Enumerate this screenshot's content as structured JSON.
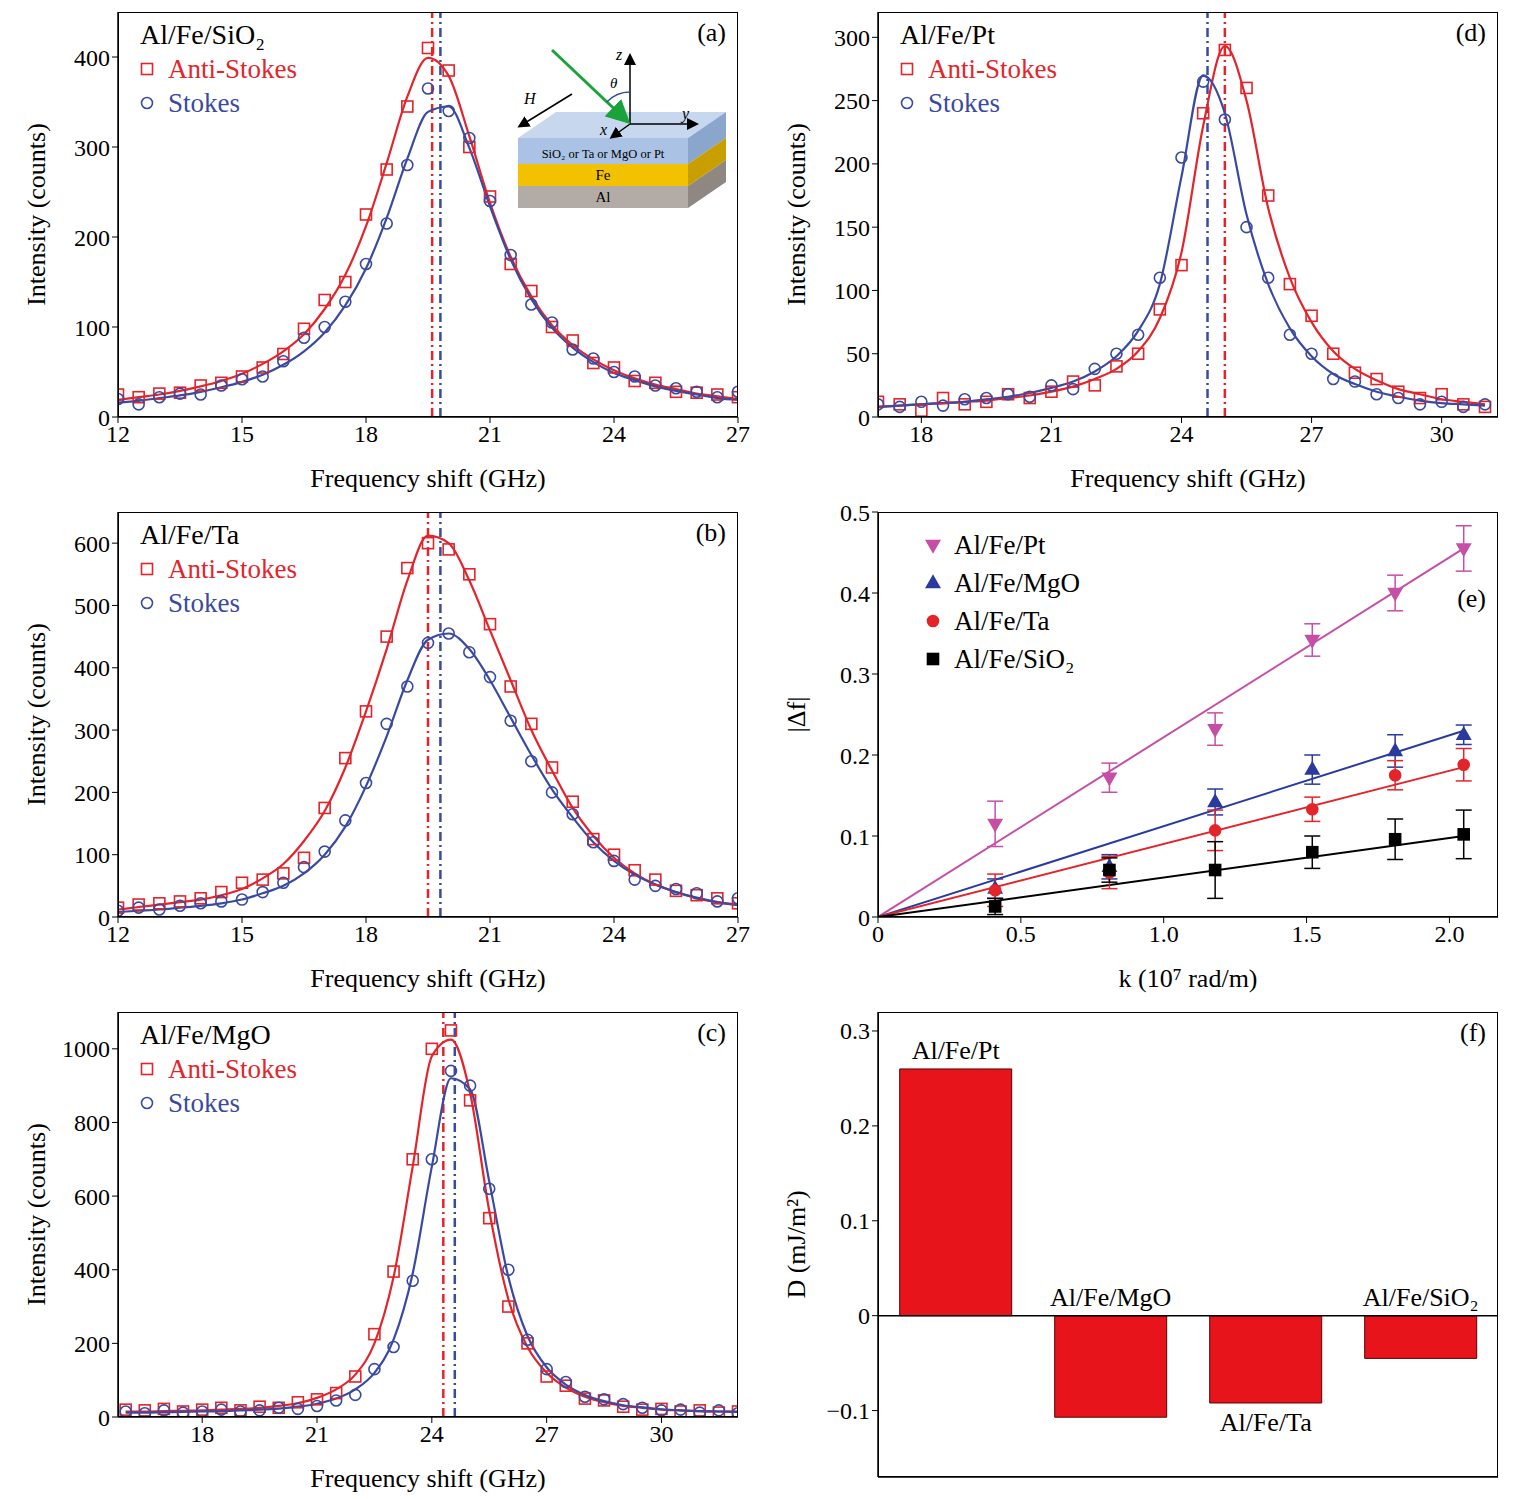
{
  "chart_data": [
    {
      "type": "line",
      "panel": "(a)",
      "title": "Al/Fe/SiO₂",
      "x_label": "Frequency shift (GHz)",
      "y_label": "Intensity (counts)",
      "xlim": [
        12,
        27
      ],
      "xticks": [
        12,
        15,
        18,
        21,
        24,
        27
      ],
      "ylim": [
        0,
        450
      ],
      "yticks": [
        0,
        100,
        200,
        300,
        400
      ],
      "legend": "upper left",
      "x": [
        12,
        12.5,
        13,
        13.5,
        14,
        14.5,
        15,
        15.5,
        16,
        16.5,
        17,
        17.5,
        18,
        18.5,
        19,
        19.5,
        20,
        20.5,
        21,
        21.5,
        22,
        22.5,
        23,
        23.5,
        24,
        24.5,
        25,
        25.5,
        26,
        26.5,
        27
      ],
      "series": [
        {
          "name": "Anti-Stokes",
          "color": "#e3242b",
          "marker": "open_square",
          "peak": 19.6,
          "values": [
            25,
            22,
            26,
            27,
            35,
            38,
            45,
            55,
            70,
            98,
            130,
            150,
            225,
            275,
            345,
            410,
            385,
            300,
            245,
            170,
            140,
            100,
            85,
            60,
            55,
            40,
            38,
            28,
            27,
            25,
            22
          ],
          "fit": [
            19,
            22,
            25,
            29,
            34,
            40,
            48,
            59,
            73,
            92,
            120,
            158,
            212,
            282,
            356,
            399,
            379,
            312,
            238,
            178,
            134,
            102,
            80,
            64,
            52,
            43,
            36,
            31,
            26,
            23,
            20
          ]
        },
        {
          "name": "Stokes",
          "color": "#3a4aa0",
          "marker": "open_circle",
          "peak": 19.8,
          "values": [
            20,
            14,
            22,
            26,
            25,
            35,
            42,
            45,
            62,
            88,
            100,
            128,
            170,
            215,
            280,
            365,
            340,
            310,
            240,
            180,
            125,
            105,
            75,
            65,
            50,
            45,
            35,
            32,
            28,
            22,
            28
          ],
          "fit": [
            16,
            18,
            21,
            24,
            28,
            33,
            39,
            47,
            58,
            73,
            94,
            124,
            165,
            221,
            287,
            339,
            345,
            299,
            234,
            175,
            131,
            99,
            77,
            61,
            49,
            41,
            34,
            29,
            25,
            21,
            19
          ]
        }
      ],
      "inset": {
        "layers": [
          "SiO₂ or Ta or MgO or Pt",
          "Fe",
          "Al"
        ],
        "axes": [
          "x",
          "y",
          "z"
        ],
        "angle": "θ",
        "field": "H"
      }
    },
    {
      "type": "line",
      "panel": "(b)",
      "title": "Al/Fe/Ta",
      "x_label": "Frequency shift (GHz)",
      "y_label": "Intensity (counts)",
      "xlim": [
        12,
        27
      ],
      "xticks": [
        12,
        15,
        18,
        21,
        24,
        27
      ],
      "ylim": [
        0,
        650
      ],
      "yticks": [
        0,
        100,
        200,
        300,
        400,
        500,
        600
      ],
      "legend": "upper left",
      "x": [
        12,
        12.5,
        13,
        13.5,
        14,
        14.5,
        15,
        15.5,
        16,
        16.5,
        17,
        17.5,
        18,
        18.5,
        19,
        19.5,
        20,
        20.5,
        21,
        21.5,
        22,
        22.5,
        23,
        23.5,
        24,
        24.5,
        25,
        25.5,
        26,
        26.5,
        27
      ],
      "series": [
        {
          "name": "Anti-Stokes",
          "color": "#e3242b",
          "marker": "open_square",
          "peak": 19.5,
          "values": [
            15,
            20,
            22,
            25,
            30,
            40,
            55,
            60,
            70,
            95,
            175,
            255,
            330,
            450,
            560,
            600,
            590,
            550,
            470,
            370,
            310,
            240,
            185,
            125,
            100,
            75,
            60,
            42,
            35,
            30,
            22
          ],
          "fit": [
            12,
            16,
            20,
            24,
            28,
            35,
            45,
            62,
            85,
            122,
            170,
            240,
            330,
            430,
            540,
            612,
            600,
            540,
            460,
            380,
            300,
            235,
            175,
            130,
            95,
            70,
            52,
            40,
            30,
            24,
            20
          ]
        },
        {
          "name": "Stokes",
          "color": "#3a4aa0",
          "marker": "open_circle",
          "peak": 19.8,
          "values": [
            10,
            15,
            12,
            18,
            22,
            25,
            28,
            40,
            55,
            80,
            105,
            155,
            215,
            310,
            370,
            440,
            455,
            425,
            385,
            315,
            250,
            200,
            165,
            120,
            90,
            60,
            50,
            45,
            38,
            25,
            30
          ],
          "fit": [
            8,
            10,
            12,
            15,
            18,
            22,
            28,
            38,
            50,
            70,
            100,
            145,
            210,
            290,
            380,
            445,
            455,
            430,
            380,
            320,
            260,
            205,
            160,
            120,
            90,
            68,
            52,
            40,
            31,
            24,
            19
          ]
        }
      ]
    },
    {
      "type": "line",
      "panel": "(c)",
      "title": "Al/Fe/MgO",
      "x_label": "Frequency shift (GHz)",
      "y_label": "Intensity (counts)",
      "xlim": [
        15.8,
        32
      ],
      "xticks": [
        18,
        21,
        24,
        27,
        30
      ],
      "ylim": [
        0,
        1100
      ],
      "yticks": [
        0,
        200,
        400,
        600,
        800,
        1000
      ],
      "legend": "upper left",
      "x": [
        16,
        16.5,
        17,
        17.5,
        18,
        18.5,
        19,
        19.5,
        20,
        20.5,
        21,
        21.5,
        22,
        22.5,
        23,
        23.5,
        24,
        24.5,
        25,
        25.5,
        26,
        26.5,
        27,
        27.5,
        28,
        28.5,
        29,
        29.5,
        30,
        30.5,
        31,
        31.5,
        32
      ],
      "series": [
        {
          "name": "Anti-Stokes",
          "color": "#e3242b",
          "marker": "open_square",
          "peak": 24.3,
          "values": [
            20,
            18,
            22,
            15,
            20,
            25,
            18,
            28,
            25,
            40,
            48,
            65,
            110,
            225,
            395,
            700,
            1000,
            1050,
            860,
            540,
            300,
            200,
            110,
            85,
            50,
            45,
            28,
            20,
            22,
            15,
            18,
            12,
            15
          ],
          "fit": [
            15,
            15,
            16,
            17,
            18,
            20,
            22,
            25,
            30,
            38,
            52,
            75,
            115,
            200,
            380,
            680,
            980,
            1025,
            880,
            560,
            320,
            190,
            120,
            80,
            55,
            40,
            30,
            25,
            20,
            18,
            16,
            15,
            14
          ]
        },
        {
          "name": "Stokes",
          "color": "#3a4aa0",
          "marker": "open_circle",
          "peak": 24.6,
          "values": [
            15,
            10,
            18,
            12,
            15,
            20,
            15,
            18,
            25,
            22,
            30,
            45,
            60,
            130,
            190,
            370,
            700,
            940,
            900,
            620,
            400,
            210,
            130,
            95,
            55,
            48,
            35,
            25,
            18,
            20,
            12,
            18,
            10
          ],
          "fit": [
            12,
            12,
            13,
            14,
            15,
            16,
            18,
            20,
            23,
            28,
            36,
            50,
            75,
            120,
            210,
            390,
            680,
            920,
            890,
            640,
            380,
            220,
            135,
            88,
            60,
            43,
            32,
            26,
            21,
            18,
            16,
            15,
            14
          ]
        }
      ]
    },
    {
      "type": "line",
      "panel": "(d)",
      "title": "Al/Fe/Pt",
      "x_label": "Frequency shift (GHz)",
      "y_label": "Intensity (counts)",
      "xlim": [
        17,
        31.3
      ],
      "xticks": [
        18,
        21,
        24,
        27,
        30
      ],
      "ylim": [
        0,
        320
      ],
      "yticks": [
        0,
        50,
        100,
        150,
        200,
        250,
        300
      ],
      "legend": "upper left",
      "x": [
        17,
        17.5,
        18,
        18.5,
        19,
        19.5,
        20,
        20.5,
        21,
        21.5,
        22,
        22.5,
        23,
        23.5,
        24,
        24.5,
        25,
        25.5,
        26,
        26.5,
        27,
        27.5,
        28,
        28.5,
        29,
        29.5,
        30,
        30.5,
        31
      ],
      "series": [
        {
          "name": "Anti-Stokes",
          "color": "#e3242b",
          "marker": "open_square",
          "peak": 25.0,
          "values": [
            12,
            10,
            5,
            15,
            10,
            12,
            18,
            15,
            20,
            28,
            25,
            40,
            50,
            85,
            120,
            240,
            290,
            260,
            175,
            105,
            80,
            50,
            35,
            30,
            20,
            15,
            18,
            10,
            8
          ],
          "fit": [
            8,
            9,
            10,
            11,
            12,
            13,
            15,
            17,
            20,
            24,
            30,
            38,
            52,
            78,
            130,
            230,
            293,
            250,
            165,
            110,
            75,
            52,
            38,
            29,
            22,
            18,
            14,
            12,
            10
          ]
        },
        {
          "name": "Stokes",
          "color": "#3a4aa0",
          "marker": "open_circle",
          "peak": 24.6,
          "values": [
            10,
            8,
            12,
            9,
            14,
            15,
            18,
            16,
            25,
            22,
            38,
            50,
            65,
            110,
            205,
            265,
            235,
            150,
            110,
            65,
            50,
            30,
            28,
            18,
            15,
            10,
            12,
            8,
            10
          ],
          "fit": [
            8,
            9,
            10,
            11,
            12,
            14,
            16,
            19,
            23,
            28,
            36,
            48,
            68,
            105,
            190,
            270,
            240,
            160,
            105,
            70,
            48,
            34,
            26,
            20,
            16,
            13,
            11,
            10,
            9
          ]
        }
      ]
    },
    {
      "type": "scatter",
      "panel": "(e)",
      "x_label": "k (10⁷ rad/m)",
      "y_label": "|Δf|",
      "xlim": [
        0,
        2.17
      ],
      "xticks": [
        0,
        0.5,
        {
          "value": 1,
          "label": "1.0"
        },
        1.5,
        {
          "value": 2,
          "label": "2.0"
        }
      ],
      "ylim": [
        0,
        0.5
      ],
      "yticks": [
        0,
        0.1,
        0.2,
        0.3,
        0.4,
        0.5
      ],
      "legend": "upper left",
      "x": [
        0.41,
        0.81,
        1.18,
        1.52,
        1.81,
        2.05
      ],
      "series": [
        {
          "name": "Al/Fe/Pt",
          "color": "#c64fa6",
          "marker": "triangle_down",
          "values": [
            0.115,
            0.172,
            0.232,
            0.342,
            0.4,
            0.455
          ],
          "errors": [
            0.028,
            0.018,
            0.02,
            0.02,
            0.022,
            0.028
          ],
          "fit": {
            "x": [
              0,
              2.05
            ],
            "values": [
              0,
              0.455
            ]
          }
        },
        {
          "name": "Al/Fe/MgO",
          "color": "#2b3a9e",
          "marker": "triangle_up",
          "values": [
            0.035,
            0.062,
            0.142,
            0.182,
            0.205,
            0.225
          ],
          "errors": [
            0.012,
            0.015,
            0.016,
            0.018,
            0.02,
            0.012
          ],
          "fit": {
            "x": [
              0,
              2.05
            ],
            "values": [
              0,
              0.23
            ]
          }
        },
        {
          "name": "Al/Fe/Ta",
          "color": "#e3242b",
          "marker": "circle",
          "values": [
            0.033,
            0.055,
            0.107,
            0.133,
            0.175,
            0.188
          ],
          "errors": [
            0.02,
            0.02,
            0.025,
            0.015,
            0.018,
            0.02
          ],
          "fit": {
            "x": [
              0,
              2.05
            ],
            "values": [
              0,
              0.185
            ]
          }
        },
        {
          "name": "Al/Fe/SiO₂",
          "color": "#000000",
          "marker": "square",
          "values": [
            0.013,
            0.058,
            0.058,
            0.08,
            0.096,
            0.102
          ],
          "errors": [
            0.01,
            0.015,
            0.035,
            0.02,
            0.025,
            0.03
          ],
          "fit": {
            "x": [
              0,
              2.05
            ],
            "values": [
              0,
              0.1
            ]
          }
        }
      ]
    },
    {
      "type": "bar",
      "panel": "(f)",
      "y_label": "D (mJ/m²)",
      "categories": [
        "Al/Fe/Pt",
        "Al/Fe/MgO",
        "Al/Fe/Ta",
        "Al/Fe/SiO₂"
      ],
      "values": [
        0.26,
        -0.107,
        -0.092,
        -0.045
      ],
      "color": "#e8141c",
      "ylim": [
        -0.17,
        0.32
      ],
      "yticks": [
        {
          "value": -0.1,
          "label": "−0.1"
        },
        0,
        0.1,
        0.2,
        0.3
      ],
      "tick_labels": "y"
    }
  ]
}
